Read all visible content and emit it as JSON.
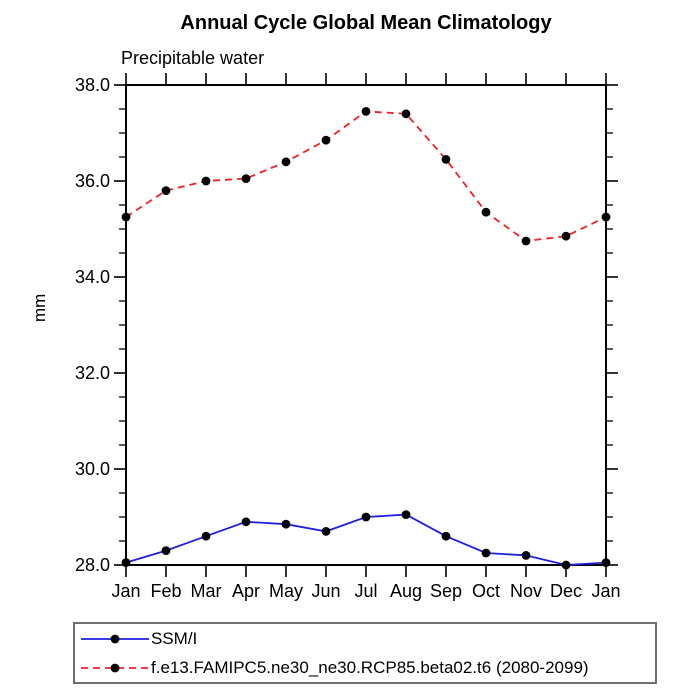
{
  "chart_data": {
    "type": "line",
    "title": "Annual Cycle Global Mean Climatology",
    "subtitle": "Precipitable water",
    "ylabel": "mm",
    "categories": [
      "Jan",
      "Feb",
      "Mar",
      "Apr",
      "May",
      "Jun",
      "Jul",
      "Aug",
      "Sep",
      "Oct",
      "Nov",
      "Dec",
      "Jan"
    ],
    "ylim": [
      28.0,
      38.0
    ],
    "yticks": [
      28.0,
      30.0,
      32.0,
      34.0,
      36.0,
      38.0
    ],
    "y_minor_step": 0.5,
    "ytick_format_decimals": 1,
    "grid": false,
    "legend_position": "bottom-left-box",
    "series": [
      {
        "name": "SSM/I",
        "color": "#1f1fe0",
        "style": "solid",
        "marker": "circle",
        "marker_color": "#000000",
        "values": [
          28.05,
          28.3,
          28.6,
          28.9,
          28.85,
          28.7,
          29.0,
          29.05,
          28.6,
          28.25,
          28.2,
          28.0,
          28.05
        ]
      },
      {
        "name": "f.e13.FAMIPC5.ne30_ne30.RCP85.beta02.t6 (2080-2099)",
        "color": "#f22020",
        "style": "dashed",
        "marker": "circle",
        "marker_color": "#000000",
        "values": [
          35.25,
          35.8,
          36.0,
          36.05,
          36.4,
          36.85,
          37.45,
          37.4,
          36.45,
          35.35,
          34.75,
          34.85,
          35.25
        ]
      }
    ],
    "frame_color": "#000000",
    "text_color": "#000000"
  }
}
